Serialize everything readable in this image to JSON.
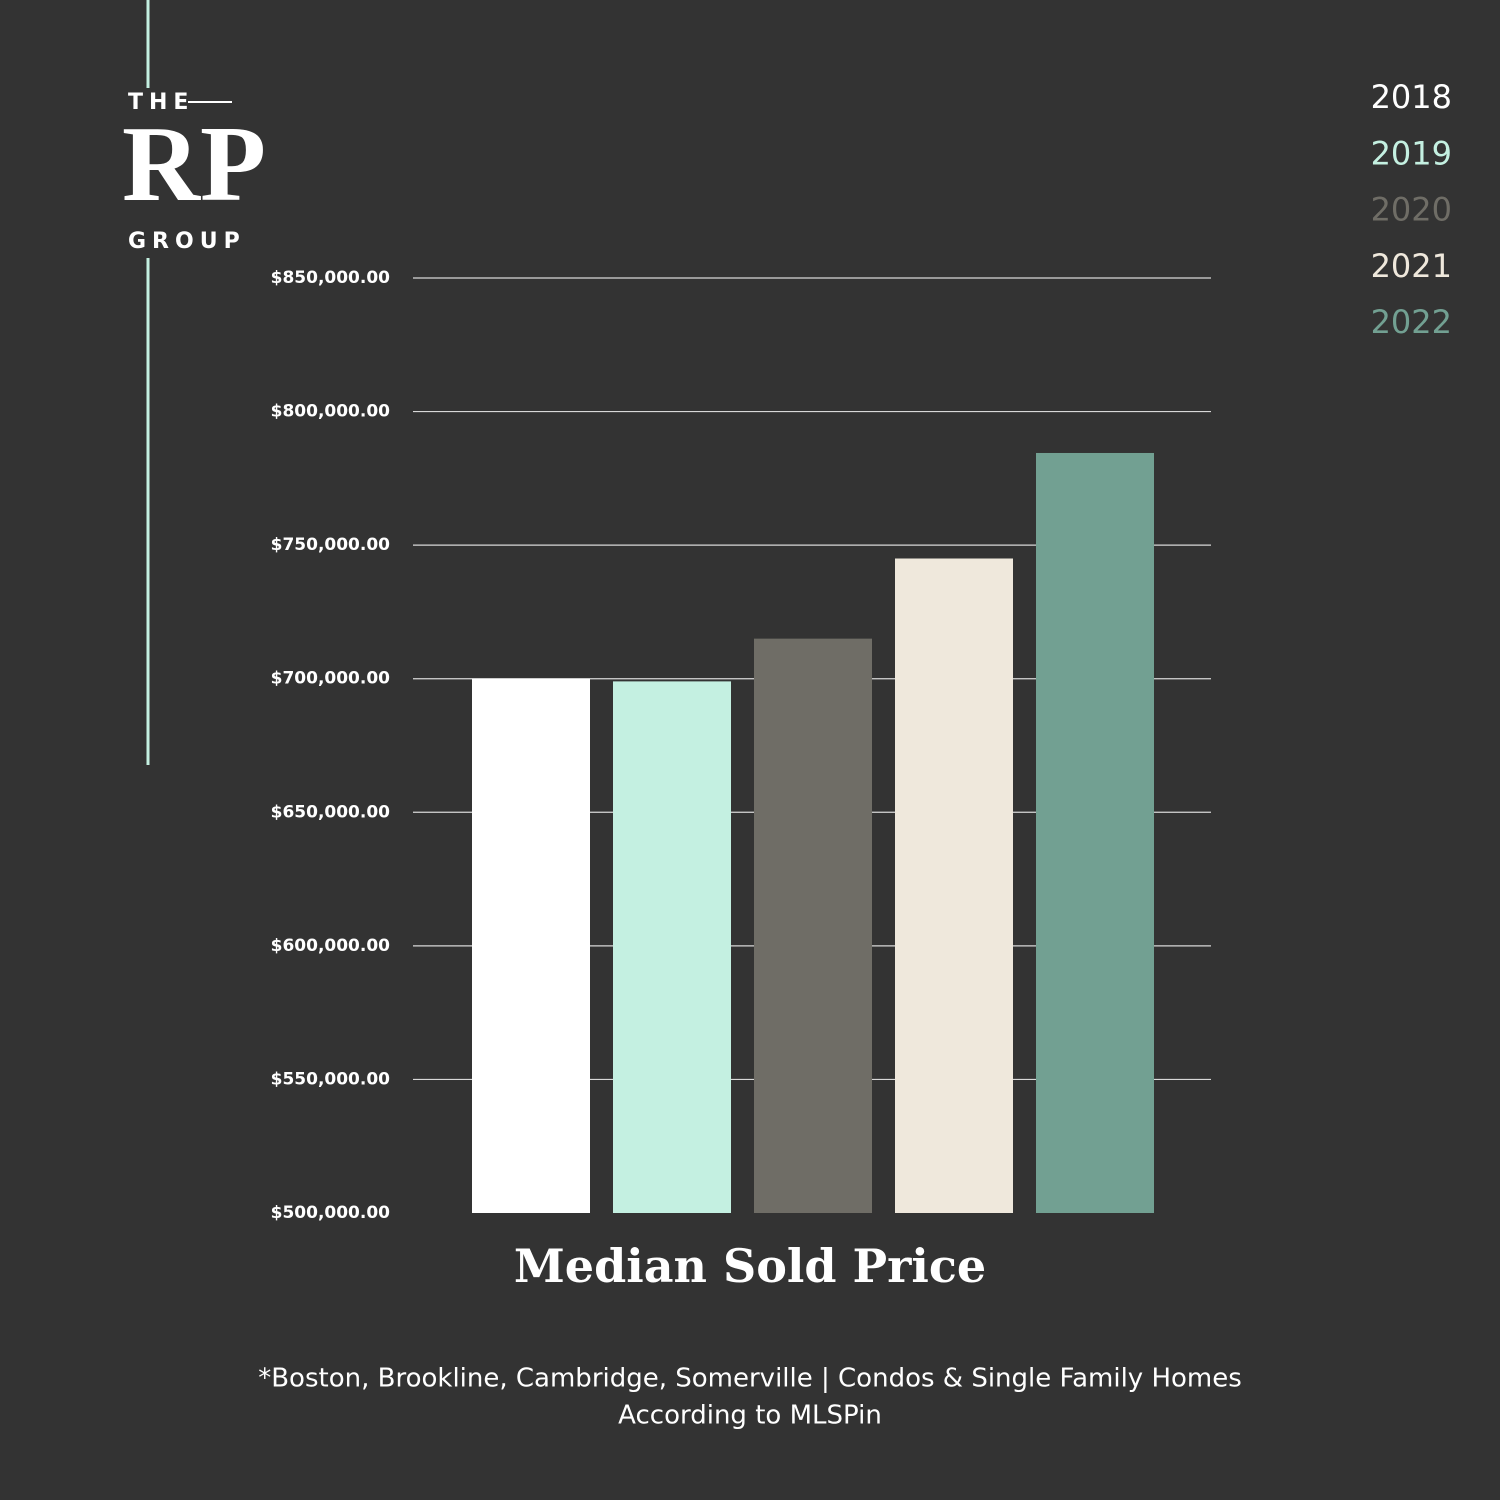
{
  "logo": {
    "top": "THE",
    "main": "RP",
    "bottom": "GROUP"
  },
  "chart_data": {
    "type": "bar",
    "title": "Median Sold Price",
    "categories": [
      "2018",
      "2019",
      "2020",
      "2021",
      "2022"
    ],
    "values": [
      700000,
      699000,
      715000,
      745000,
      784500
    ],
    "colors": [
      "#ffffff",
      "#c4f0e1",
      "#6f6d66",
      "#efe8dc",
      "#72a092"
    ],
    "ylim": [
      500000,
      850000
    ],
    "yticks": [
      {
        "value": 500000,
        "label": "$500,000.00"
      },
      {
        "value": 550000,
        "label": "$550,000.00"
      },
      {
        "value": 600000,
        "label": "$600,000.00"
      },
      {
        "value": 650000,
        "label": "$650,000.00"
      },
      {
        "value": 700000,
        "label": "$700,000.00"
      },
      {
        "value": 750000,
        "label": "$750,000.00"
      },
      {
        "value": 800000,
        "label": "$800,000.00"
      },
      {
        "value": 850000,
        "label": "$850,000.00"
      }
    ],
    "grid": true,
    "footnote": [
      "*Boston, Brookline, Cambridge, Somerville | Condos & Single Family Homes",
      "According to MLSPin"
    ]
  }
}
